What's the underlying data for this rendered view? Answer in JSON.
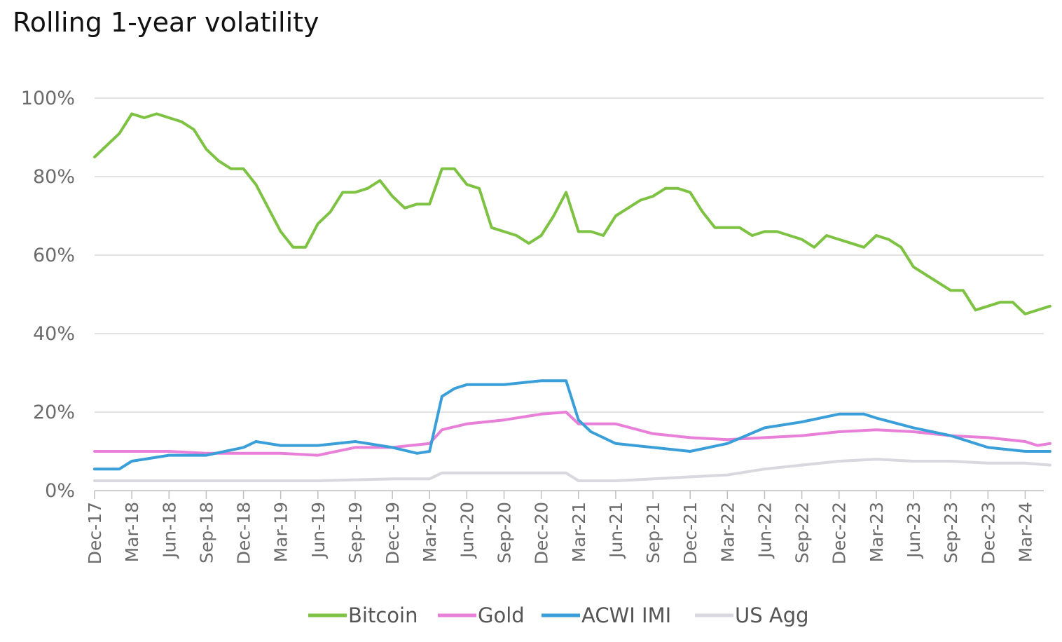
{
  "chart_data": {
    "type": "line",
    "title": "Rolling 1-year volatility",
    "xlabel": "",
    "ylabel": "",
    "ylim": [
      0,
      100
    ],
    "y_ticks": [
      "0%",
      "20%",
      "40%",
      "60%",
      "80%",
      "100%"
    ],
    "y_tick_values": [
      0,
      20,
      40,
      60,
      80,
      100
    ],
    "x_start": "2017-12",
    "x_ticks": [
      "Dec-17",
      "Mar-18",
      "Jun-18",
      "Sep-18",
      "Dec-18",
      "Mar-19",
      "Jun-19",
      "Sep-19",
      "Dec-19",
      "Mar-20",
      "Jun-20",
      "Sep-20",
      "Dec-20",
      "Mar-21",
      "Jun-21",
      "Sep-21",
      "Dec-21",
      "Mar-22",
      "Jun-22",
      "Sep-22",
      "Dec-22",
      "Mar-23",
      "Jun-23",
      "Sep-23",
      "Dec-23",
      "Mar-24"
    ],
    "grid": true,
    "legend_position": "bottom",
    "series": [
      {
        "name": "Bitcoin",
        "color": "#7dc242",
        "points": [
          [
            "2017-12",
            85
          ],
          [
            "2018-01",
            88
          ],
          [
            "2018-02",
            91
          ],
          [
            "2018-03",
            96
          ],
          [
            "2018-04",
            95
          ],
          [
            "2018-05",
            96
          ],
          [
            "2018-06",
            95
          ],
          [
            "2018-07",
            94
          ],
          [
            "2018-08",
            92
          ],
          [
            "2018-09",
            87
          ],
          [
            "2018-10",
            84
          ],
          [
            "2018-11",
            82
          ],
          [
            "2018-12",
            82
          ],
          [
            "2019-01",
            78
          ],
          [
            "2019-02",
            72
          ],
          [
            "2019-03",
            66
          ],
          [
            "2019-04",
            62
          ],
          [
            "2019-05",
            62
          ],
          [
            "2019-06",
            68
          ],
          [
            "2019-07",
            71
          ],
          [
            "2019-08",
            76
          ],
          [
            "2019-09",
            76
          ],
          [
            "2019-10",
            77
          ],
          [
            "2019-11",
            79
          ],
          [
            "2019-12",
            75
          ],
          [
            "2020-01",
            72
          ],
          [
            "2020-02",
            73
          ],
          [
            "2020-03",
            73
          ],
          [
            "2020-04",
            82
          ],
          [
            "2020-05",
            82
          ],
          [
            "2020-06",
            78
          ],
          [
            "2020-07",
            77
          ],
          [
            "2020-08",
            67
          ],
          [
            "2020-09",
            66
          ],
          [
            "2020-10",
            65
          ],
          [
            "2020-11",
            63
          ],
          [
            "2020-12",
            65
          ],
          [
            "2021-01",
            70
          ],
          [
            "2021-02",
            76
          ],
          [
            "2021-03",
            66
          ],
          [
            "2021-04",
            66
          ],
          [
            "2021-05",
            65
          ],
          [
            "2021-06",
            70
          ],
          [
            "2021-07",
            72
          ],
          [
            "2021-08",
            74
          ],
          [
            "2021-09",
            75
          ],
          [
            "2021-10",
            77
          ],
          [
            "2021-11",
            77
          ],
          [
            "2021-12",
            76
          ],
          [
            "2022-01",
            71
          ],
          [
            "2022-02",
            67
          ],
          [
            "2022-03",
            67
          ],
          [
            "2022-04",
            67
          ],
          [
            "2022-05",
            65
          ],
          [
            "2022-06",
            66
          ],
          [
            "2022-07",
            66
          ],
          [
            "2022-08",
            65
          ],
          [
            "2022-09",
            64
          ],
          [
            "2022-10",
            62
          ],
          [
            "2022-11",
            65
          ],
          [
            "2022-12",
            64
          ],
          [
            "2023-01",
            63
          ],
          [
            "2023-02",
            62
          ],
          [
            "2023-03",
            65
          ],
          [
            "2023-04",
            64
          ],
          [
            "2023-05",
            62
          ],
          [
            "2023-06",
            57
          ],
          [
            "2023-07",
            55
          ],
          [
            "2023-08",
            53
          ],
          [
            "2023-09",
            51
          ],
          [
            "2023-10",
            51
          ],
          [
            "2023-11",
            46
          ],
          [
            "2023-12",
            47
          ],
          [
            "2024-01",
            48
          ],
          [
            "2024-02",
            48
          ],
          [
            "2024-03",
            45
          ],
          [
            "2024-04",
            46
          ],
          [
            "2024-05",
            47
          ]
        ]
      },
      {
        "name": "Gold",
        "color": "#e87fd8",
        "points": [
          [
            "2017-12",
            10
          ],
          [
            "2018-03",
            10
          ],
          [
            "2018-06",
            10
          ],
          [
            "2018-09",
            9.5
          ],
          [
            "2018-12",
            9.5
          ],
          [
            "2019-03",
            9.5
          ],
          [
            "2019-06",
            9
          ],
          [
            "2019-09",
            11
          ],
          [
            "2019-12",
            11
          ],
          [
            "2020-03",
            12
          ],
          [
            "2020-04",
            15.5
          ],
          [
            "2020-06",
            17
          ],
          [
            "2020-09",
            18
          ],
          [
            "2020-12",
            19.5
          ],
          [
            "2021-02",
            20
          ],
          [
            "2021-03",
            17
          ],
          [
            "2021-06",
            17
          ],
          [
            "2021-09",
            14.5
          ],
          [
            "2021-12",
            13.5
          ],
          [
            "2022-03",
            13
          ],
          [
            "2022-06",
            13.5
          ],
          [
            "2022-09",
            14
          ],
          [
            "2022-12",
            15
          ],
          [
            "2023-03",
            15.5
          ],
          [
            "2023-06",
            15
          ],
          [
            "2023-09",
            14
          ],
          [
            "2023-12",
            13.5
          ],
          [
            "2024-03",
            12.5
          ],
          [
            "2024-04",
            11.5
          ],
          [
            "2024-05",
            12
          ]
        ]
      },
      {
        "name": "ACWI IMI",
        "color": "#3a9fd9",
        "points": [
          [
            "2017-12",
            5.5
          ],
          [
            "2018-02",
            5.5
          ],
          [
            "2018-03",
            7.5
          ],
          [
            "2018-06",
            9
          ],
          [
            "2018-09",
            9
          ],
          [
            "2018-12",
            11
          ],
          [
            "2019-01",
            12.5
          ],
          [
            "2019-03",
            11.5
          ],
          [
            "2019-06",
            11.5
          ],
          [
            "2019-09",
            12.5
          ],
          [
            "2019-12",
            11
          ],
          [
            "2020-02",
            9.5
          ],
          [
            "2020-03",
            10
          ],
          [
            "2020-04",
            24
          ],
          [
            "2020-05",
            26
          ],
          [
            "2020-06",
            27
          ],
          [
            "2020-09",
            27
          ],
          [
            "2020-12",
            28
          ],
          [
            "2021-02",
            28
          ],
          [
            "2021-03",
            18
          ],
          [
            "2021-04",
            15
          ],
          [
            "2021-06",
            12
          ],
          [
            "2021-09",
            11
          ],
          [
            "2021-12",
            10
          ],
          [
            "2022-03",
            12
          ],
          [
            "2022-06",
            16
          ],
          [
            "2022-09",
            17.5
          ],
          [
            "2022-12",
            19.5
          ],
          [
            "2023-02",
            19.5
          ],
          [
            "2023-03",
            18.5
          ],
          [
            "2023-06",
            16
          ],
          [
            "2023-09",
            14
          ],
          [
            "2023-12",
            11
          ],
          [
            "2024-03",
            10
          ],
          [
            "2024-05",
            10
          ]
        ]
      },
      {
        "name": "US Agg",
        "color": "#d8d8de",
        "points": [
          [
            "2017-12",
            2.5
          ],
          [
            "2018-06",
            2.5
          ],
          [
            "2018-12",
            2.5
          ],
          [
            "2019-06",
            2.5
          ],
          [
            "2019-12",
            3
          ],
          [
            "2020-03",
            3
          ],
          [
            "2020-04",
            4.5
          ],
          [
            "2020-09",
            4.5
          ],
          [
            "2021-02",
            4.5
          ],
          [
            "2021-03",
            2.5
          ],
          [
            "2021-06",
            2.5
          ],
          [
            "2021-09",
            3
          ],
          [
            "2021-12",
            3.5
          ],
          [
            "2022-03",
            4
          ],
          [
            "2022-06",
            5.5
          ],
          [
            "2022-09",
            6.5
          ],
          [
            "2022-12",
            7.5
          ],
          [
            "2023-03",
            8
          ],
          [
            "2023-06",
            7.5
          ],
          [
            "2023-09",
            7.5
          ],
          [
            "2023-12",
            7
          ],
          [
            "2024-03",
            7
          ],
          [
            "2024-05",
            6.5
          ]
        ]
      }
    ]
  }
}
